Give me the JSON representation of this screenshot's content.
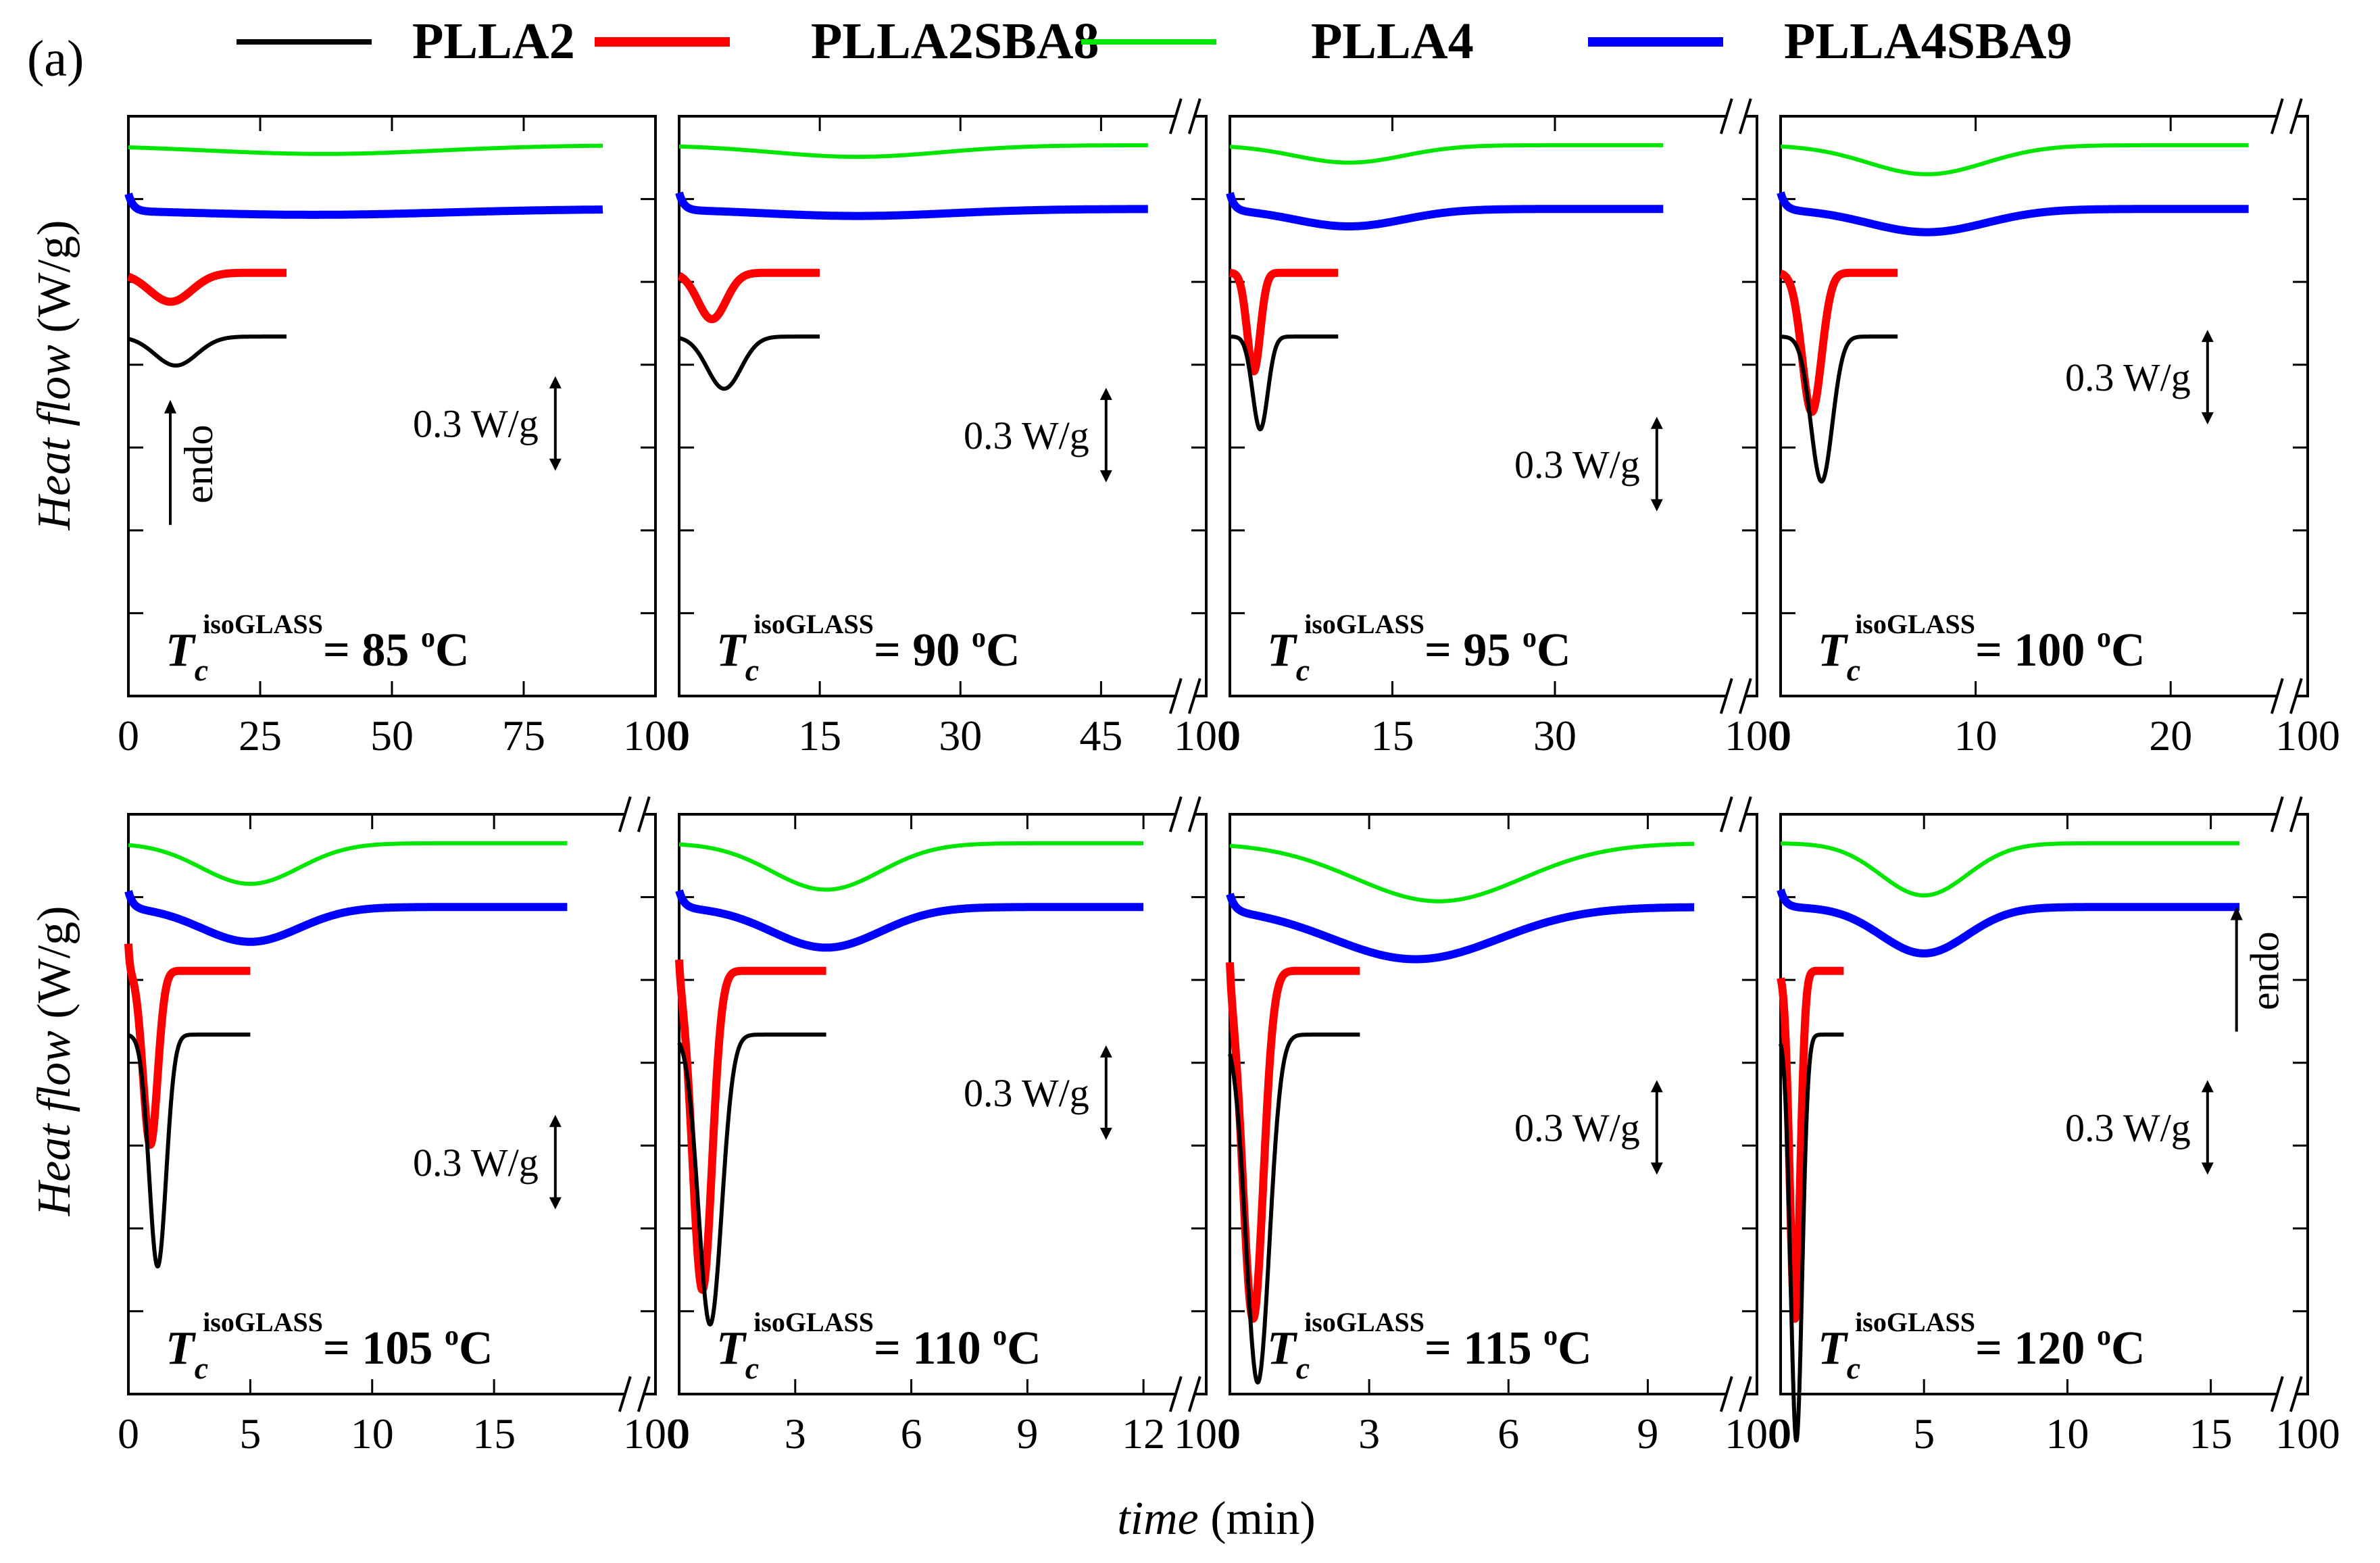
{
  "figure": {
    "panel_label": "(a)",
    "xlabel_italic": "time",
    "xlabel_unit": "(min)",
    "ylabel_italic": "Heat flow",
    "ylabel_unit": "(W/g)",
    "legend": [
      {
        "name": "PLLA2",
        "color": "#000000"
      },
      {
        "name": "PLLA2SBA8",
        "color": "#ff0000"
      },
      {
        "name": "PLLA4",
        "color": "#00e600"
      },
      {
        "name": "PLLA4SBA9",
        "color": "#0000ff"
      }
    ],
    "scale_label": "0.3 W/g",
    "endo_label": "endo",
    "tc_symbol": "T",
    "tc_sub": "c",
    "tc_sup": "isoGLASS",
    "degree_symbol": "o",
    "break_tick_label": "100"
  },
  "chart_data": [
    {
      "type": "line",
      "title": "Tc isoGLASS = 85 oC",
      "tc_value": "= 85 ",
      "xlim": [
        0,
        100
      ],
      "break": false,
      "ticks": [
        0,
        25,
        50,
        75
      ],
      "tick_labels": [
        "0",
        "25",
        "50",
        "75"
      ],
      "has_endo": true,
      "series": [
        {
          "name": "PLLA4",
          "level": 0.95,
          "end": 90,
          "dips": [
            [
              37,
              0.015,
              22
            ]
          ],
          "spike": 0
        },
        {
          "name": "PLLA4SBA9",
          "level": 0.84,
          "end": 90,
          "dips": [
            [
              35,
              0.01,
              25
            ]
          ],
          "spike": 0.03
        },
        {
          "name": "PLLA2SBA8",
          "level": 0.73,
          "end": 30,
          "dips": [
            [
              8,
              0.05,
              4
            ]
          ],
          "spike": 0
        },
        {
          "name": "PLLA2",
          "level": 0.62,
          "end": 30,
          "dips": [
            [
              9,
              0.05,
              4
            ]
          ],
          "spike": 0
        }
      ]
    },
    {
      "type": "line",
      "title": "Tc isoGLASS = 90 oC",
      "tc_value": "= 90 ",
      "xlim": [
        0,
        52
      ],
      "break": true,
      "ticks": [
        0,
        15,
        30,
        45
      ],
      "tick_labels": [
        "0",
        "15",
        "30",
        "45"
      ],
      "has_endo": false,
      "series": [
        {
          "name": "PLLA4",
          "level": 0.95,
          "end": 50,
          "dips": [
            [
              19,
              0.02,
              9
            ]
          ],
          "spike": 0
        },
        {
          "name": "PLLA4SBA9",
          "level": 0.84,
          "end": 50,
          "dips": [
            [
              19,
              0.012,
              10
            ]
          ],
          "spike": 0.03
        },
        {
          "name": "PLLA2SBA8",
          "level": 0.73,
          "end": 15,
          "dips": [
            [
              3.5,
              0.08,
              1.5
            ]
          ],
          "spike": 0
        },
        {
          "name": "PLLA2",
          "level": 0.62,
          "end": 15,
          "dips": [
            [
              4.8,
              0.09,
              1.8
            ]
          ],
          "spike": 0
        }
      ]
    },
    {
      "type": "line",
      "title": "Tc isoGLASS = 95 oC",
      "tc_value": "= 95 ",
      "xlim": [
        0,
        45
      ],
      "break": true,
      "ticks": [
        0,
        15,
        30
      ],
      "tick_labels": [
        "0",
        "15",
        "30"
      ],
      "has_endo": false,
      "series": [
        {
          "name": "PLLA4",
          "level": 0.95,
          "end": 40,
          "dips": [
            [
              11,
              0.03,
              5
            ]
          ],
          "spike": 0
        },
        {
          "name": "PLLA4SBA9",
          "level": 0.84,
          "end": 40,
          "dips": [
            [
              11,
              0.03,
              5
            ]
          ],
          "spike": 0.03
        },
        {
          "name": "PLLA2SBA8",
          "level": 0.73,
          "end": 10,
          "dips": [
            [
              2.2,
              0.17,
              0.6
            ]
          ],
          "spike": 0
        },
        {
          "name": "PLLA2",
          "level": 0.62,
          "end": 10,
          "dips": [
            [
              2.8,
              0.16,
              0.7
            ]
          ],
          "spike": 0
        }
      ]
    },
    {
      "type": "line",
      "title": "Tc isoGLASS = 100 oC",
      "tc_value": "= 100 ",
      "xlim": [
        0,
        25
      ],
      "break": true,
      "ticks": [
        0,
        10,
        20
      ],
      "tick_labels": [
        "0",
        "10",
        "20"
      ],
      "has_endo": false,
      "series": [
        {
          "name": "PLLA4",
          "level": 0.95,
          "end": 24,
          "dips": [
            [
              7.5,
              0.05,
              3
            ]
          ],
          "spike": 0
        },
        {
          "name": "PLLA4SBA9",
          "level": 0.84,
          "end": 24,
          "dips": [
            [
              7.5,
              0.04,
              3
            ]
          ],
          "spike": 0.03
        },
        {
          "name": "PLLA2SBA8",
          "level": 0.73,
          "end": 6,
          "dips": [
            [
              1.6,
              0.24,
              0.5
            ]
          ],
          "spike": 0
        },
        {
          "name": "PLLA2",
          "level": 0.62,
          "end": 6,
          "dips": [
            [
              2.1,
              0.25,
              0.55
            ]
          ],
          "spike": 0
        }
      ]
    },
    {
      "type": "line",
      "title": "Tc isoGLASS = 105 oC",
      "tc_value": "= 105 ",
      "xlim": [
        0,
        20
      ],
      "break": true,
      "ticks": [
        0,
        5,
        10,
        15
      ],
      "tick_labels": [
        "0",
        "5",
        "10",
        "15"
      ],
      "has_endo": false,
      "series": [
        {
          "name": "PLLA4",
          "level": 0.95,
          "end": 18,
          "dips": [
            [
              5,
              0.07,
              2
            ]
          ],
          "spike": 0
        },
        {
          "name": "PLLA4SBA9",
          "level": 0.84,
          "end": 18,
          "dips": [
            [
              5,
              0.06,
              2
            ]
          ],
          "spike": 0.03
        },
        {
          "name": "PLLA2SBA8",
          "level": 0.73,
          "end": 5,
          "dips": [
            [
              0.9,
              0.3,
              0.3
            ]
          ],
          "spike": 0.05
        },
        {
          "name": "PLLA2",
          "level": 0.62,
          "end": 5,
          "dips": [
            [
              1.2,
              0.4,
              0.35
            ]
          ],
          "spike": 0
        }
      ]
    },
    {
      "type": "line",
      "title": "Tc isoGLASS = 110 oC",
      "tc_value": "= 110 ",
      "xlim": [
        0,
        12.6
      ],
      "break": true,
      "ticks": [
        0,
        3,
        6,
        9,
        12
      ],
      "tick_labels": [
        "0",
        "3",
        "6",
        "9",
        "12"
      ],
      "has_endo": false,
      "series": [
        {
          "name": "PLLA4",
          "level": 0.95,
          "end": 12,
          "dips": [
            [
              3.8,
              0.08,
              1.4
            ]
          ],
          "spike": 0
        },
        {
          "name": "PLLA4SBA9",
          "level": 0.84,
          "end": 12,
          "dips": [
            [
              3.8,
              0.07,
              1.4
            ]
          ],
          "spike": 0.03
        },
        {
          "name": "PLLA2SBA8",
          "level": 0.73,
          "end": 3.8,
          "dips": [
            [
              0.6,
              0.55,
              0.25
            ]
          ],
          "spike": 0.05
        },
        {
          "name": "PLLA2",
          "level": 0.62,
          "end": 3.8,
          "dips": [
            [
              0.8,
              0.5,
              0.3
            ]
          ],
          "spike": 0
        }
      ]
    },
    {
      "type": "line",
      "title": "Tc isoGLASS = 115 oC",
      "tc_value": "= 115 ",
      "xlim": [
        0,
        10.5
      ],
      "break": true,
      "ticks": [
        0,
        3,
        6,
        9
      ],
      "tick_labels": [
        "0",
        "3",
        "6",
        "9"
      ],
      "has_endo": false,
      "series": [
        {
          "name": "PLLA4",
          "level": 0.95,
          "end": 10,
          "dips": [
            [
              4.5,
              0.1,
              1.8
            ]
          ],
          "spike": 0
        },
        {
          "name": "PLLA4SBA9",
          "level": 0.84,
          "end": 10,
          "dips": [
            [
              4,
              0.09,
              1.8
            ]
          ],
          "spike": 0.03
        },
        {
          "name": "PLLA2SBA8",
          "level": 0.73,
          "end": 2.8,
          "dips": [
            [
              0.5,
              0.6,
              0.22
            ]
          ],
          "spike": 0.06
        },
        {
          "name": "PLLA2",
          "level": 0.62,
          "end": 2.8,
          "dips": [
            [
              0.6,
              0.6,
              0.25
            ]
          ],
          "spike": 0
        }
      ]
    },
    {
      "type": "line",
      "title": "Tc isoGLASS = 120 oC",
      "tc_value": "= 120 ",
      "xlim": [
        0,
        17
      ],
      "break": true,
      "ticks": [
        0,
        5,
        10,
        15
      ],
      "tick_labels": [
        "0",
        "5",
        "10",
        "15"
      ],
      "has_endo": true,
      "series": [
        {
          "name": "PLLA4",
          "level": 0.95,
          "end": 16,
          "dips": [
            [
              5,
              0.09,
              1.5
            ]
          ],
          "spike": 0
        },
        {
          "name": "PLLA4SBA9",
          "level": 0.84,
          "end": 16,
          "dips": [
            [
              5,
              0.08,
              1.5
            ]
          ],
          "spike": 0.03
        },
        {
          "name": "PLLA2SBA8",
          "level": 0.73,
          "end": 2.2,
          "dips": [
            [
              0.5,
              0.6,
              0.18
            ]
          ],
          "spike": 0
        },
        {
          "name": "PLLA2",
          "level": 0.62,
          "end": 2.2,
          "dips": [
            [
              0.55,
              0.7,
              0.2
            ]
          ],
          "spike": 0
        }
      ]
    }
  ]
}
